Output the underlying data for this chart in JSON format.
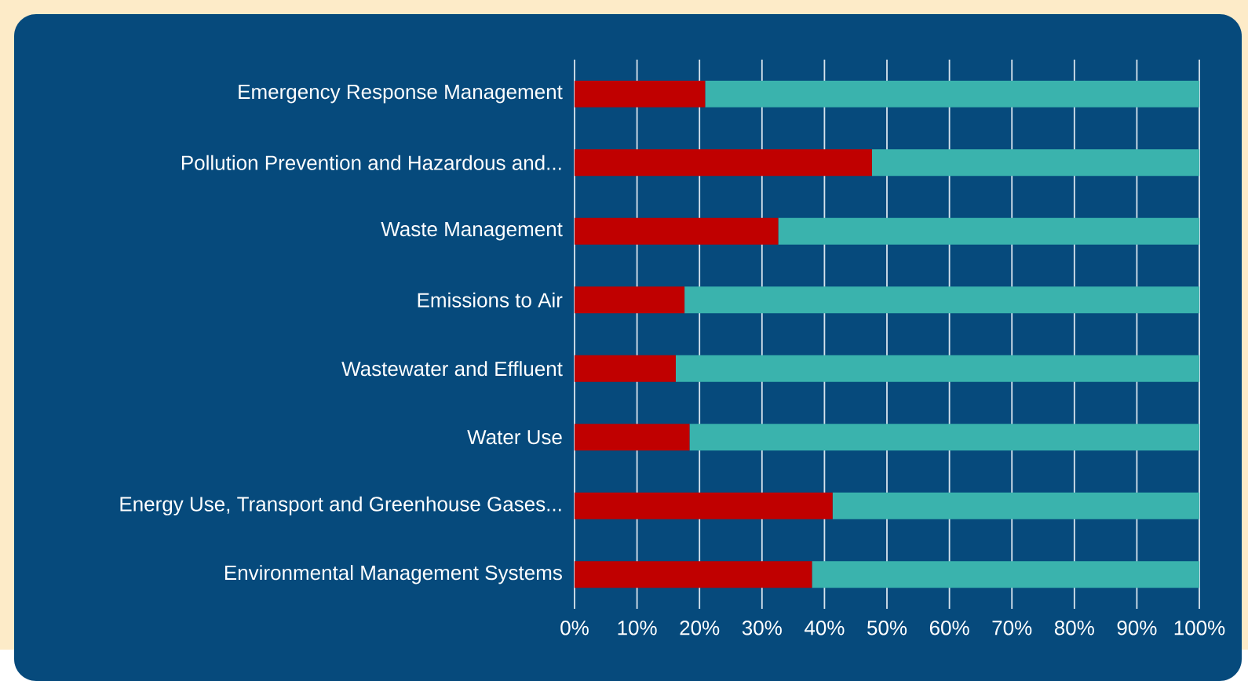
{
  "chart_data": {
    "type": "bar",
    "orientation": "horizontal",
    "stacked": true,
    "grid": "x",
    "categories": [
      "Emergency Response Management",
      "Pollution Prevention and Hazardous and...",
      "Waste Management",
      "Emissions to Air",
      "Wastewater and Effluent",
      "Water Use",
      "Energy Use, Transport and Greenhouse Gases...",
      "Environmental Management Systems"
    ],
    "series": [
      {
        "color": "#c00000",
        "values": [
          20.9,
          47.6,
          32.6,
          17.6,
          16.2,
          18.4,
          41.3,
          38.0
        ]
      },
      {
        "color": "#3ab3ad",
        "values": [
          79.1,
          52.4,
          67.4,
          82.4,
          83.8,
          81.6,
          58.7,
          62.0
        ]
      }
    ],
    "xlim": [
      0,
      100
    ],
    "xticks": [
      {
        "value": 0,
        "label": "0%"
      },
      {
        "value": 10,
        "label": "10%"
      },
      {
        "value": 20,
        "label": "20%"
      },
      {
        "value": 30,
        "label": "30%"
      },
      {
        "value": 40,
        "label": "40%"
      },
      {
        "value": 50,
        "label": "50%"
      },
      {
        "value": 60,
        "label": "60%"
      },
      {
        "value": 70,
        "label": "70%"
      },
      {
        "value": 80,
        "label": "80%"
      },
      {
        "value": 90,
        "label": "90%"
      },
      {
        "value": 100,
        "label": "100%"
      }
    ]
  }
}
